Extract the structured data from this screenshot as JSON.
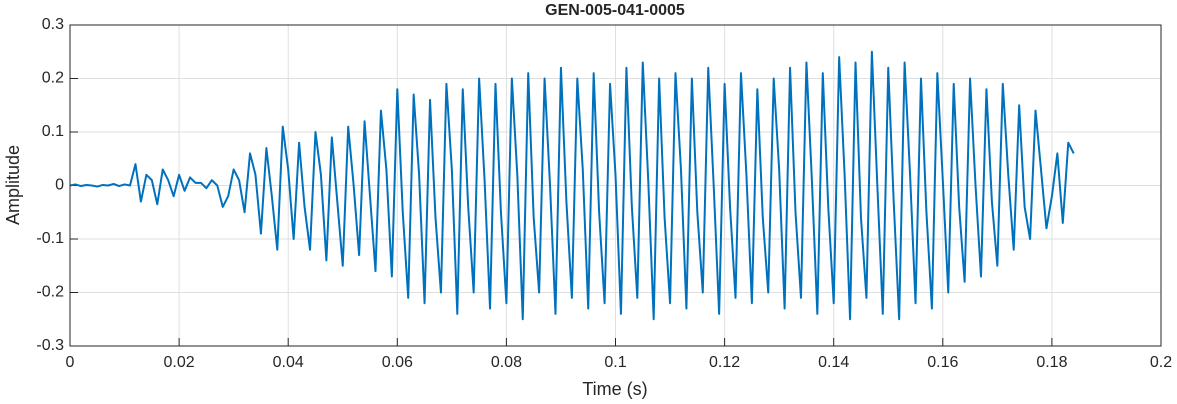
{
  "chart_data": {
    "type": "line",
    "title": "GEN-005-041-0005",
    "xlabel": "Time (s)",
    "ylabel": "Amplitude",
    "xlim": [
      0,
      0.2
    ],
    "ylim": [
      -0.3,
      0.3
    ],
    "xticks": [
      0,
      0.02,
      0.04,
      0.06,
      0.08,
      0.1,
      0.12,
      0.14,
      0.16,
      0.18,
      0.2
    ],
    "yticks": [
      -0.3,
      -0.2,
      -0.1,
      0,
      0.1,
      0.2,
      0.3
    ],
    "grid": true,
    "x": [
      0,
      0.001,
      0.002,
      0.003,
      0.004,
      0.005,
      0.006,
      0.007,
      0.008,
      0.009,
      0.01,
      0.011,
      0.012,
      0.013,
      0.014,
      0.015,
      0.016,
      0.017,
      0.018,
      0.019,
      0.02,
      0.021,
      0.022,
      0.023,
      0.024,
      0.025,
      0.026,
      0.027,
      0.028,
      0.029,
      0.03,
      0.031,
      0.032,
      0.033,
      0.034,
      0.035,
      0.036,
      0.037,
      0.038,
      0.039,
      0.04,
      0.041,
      0.042,
      0.043,
      0.044,
      0.045,
      0.046,
      0.047,
      0.048,
      0.049,
      0.05,
      0.051,
      0.052,
      0.053,
      0.054,
      0.055,
      0.056,
      0.057,
      0.058,
      0.059,
      0.06,
      0.061,
      0.062,
      0.063,
      0.064,
      0.065,
      0.066,
      0.067,
      0.068,
      0.069,
      0.07,
      0.071,
      0.072,
      0.073,
      0.074,
      0.075,
      0.076,
      0.077,
      0.078,
      0.079,
      0.08,
      0.081,
      0.082,
      0.083,
      0.084,
      0.085,
      0.086,
      0.087,
      0.088,
      0.089,
      0.09,
      0.091,
      0.092,
      0.093,
      0.094,
      0.095,
      0.096,
      0.097,
      0.098,
      0.099,
      0.1,
      0.101,
      0.102,
      0.103,
      0.104,
      0.105,
      0.106,
      0.107,
      0.108,
      0.109,
      0.11,
      0.111,
      0.112,
      0.113,
      0.114,
      0.115,
      0.116,
      0.117,
      0.118,
      0.119,
      0.12,
      0.121,
      0.122,
      0.123,
      0.124,
      0.125,
      0.126,
      0.127,
      0.128,
      0.129,
      0.13,
      0.131,
      0.132,
      0.133,
      0.134,
      0.135,
      0.136,
      0.137,
      0.138,
      0.139,
      0.14,
      0.141,
      0.142,
      0.143,
      0.144,
      0.145,
      0.146,
      0.147,
      0.148,
      0.149,
      0.15,
      0.151,
      0.152,
      0.153,
      0.154,
      0.155,
      0.156,
      0.157,
      0.158,
      0.159,
      0.16,
      0.161,
      0.162,
      0.163,
      0.164,
      0.165,
      0.166,
      0.167,
      0.168,
      0.169,
      0.17,
      0.171,
      0.172,
      0.173,
      0.174,
      0.175,
      0.176,
      0.177,
      0.178,
      0.179,
      0.18,
      0.181,
      0.182,
      0.183,
      0.184
    ],
    "series": [
      {
        "color": "#0072bd",
        "values": [
          0,
          0.002,
          -0.001,
          0.001,
          0,
          -0.002,
          0.001,
          0,
          0.003,
          -0.001,
          0.002,
          0,
          0.04,
          -0.03,
          0.02,
          0.01,
          -0.035,
          0.03,
          0.01,
          -0.02,
          0.02,
          -0.01,
          0.015,
          0.005,
          0.005,
          -0.005,
          0.01,
          0,
          -0.04,
          -0.02,
          0.03,
          0.01,
          -0.05,
          0.06,
          0.02,
          -0.09,
          0.07,
          -0.02,
          -0.12,
          0.11,
          0.03,
          -0.1,
          0.08,
          -0.04,
          -0.12,
          0.1,
          0.02,
          -0.14,
          0.09,
          -0.03,
          -0.15,
          0.11,
          0.0,
          -0.13,
          0.12,
          -0.02,
          -0.16,
          0.14,
          0.03,
          -0.17,
          0.18,
          -0.05,
          -0.21,
          0.17,
          0.02,
          -0.22,
          0.16,
          -0.06,
          -0.2,
          0.19,
          0.03,
          -0.24,
          0.18,
          -0.04,
          -0.2,
          0.2,
          0.01,
          -0.23,
          0.19,
          -0.05,
          -0.22,
          0.2,
          0.02,
          -0.25,
          0.21,
          -0.06,
          -0.2,
          0.2,
          0.0,
          -0.24,
          0.22,
          -0.03,
          -0.21,
          0.2,
          0.03,
          -0.23,
          0.21,
          -0.05,
          -0.22,
          0.19,
          0.02,
          -0.24,
          0.22,
          -0.04,
          -0.21,
          0.23,
          0.01,
          -0.25,
          0.2,
          -0.06,
          -0.22,
          0.21,
          0.03,
          -0.23,
          0.2,
          -0.05,
          -0.2,
          0.22,
          0.0,
          -0.24,
          0.19,
          -0.04,
          -0.21,
          0.21,
          0.02,
          -0.22,
          0.18,
          -0.06,
          -0.2,
          0.2,
          0.03,
          -0.23,
          0.22,
          -0.05,
          -0.21,
          0.23,
          0.01,
          -0.24,
          0.21,
          -0.04,
          -0.22,
          0.24,
          0.02,
          -0.25,
          0.23,
          -0.06,
          -0.21,
          0.25,
          0.0,
          -0.24,
          0.22,
          -0.03,
          -0.25,
          0.23,
          0.02,
          -0.22,
          0.2,
          -0.05,
          -0.23,
          0.21,
          0.01,
          -0.2,
          0.19,
          -0.04,
          -0.18,
          0.2,
          0.0,
          -0.17,
          0.18,
          -0.03,
          -0.15,
          0.19,
          0.02,
          -0.12,
          0.15,
          -0.04,
          -0.1,
          0.14,
          0.03,
          -0.08,
          -0.02,
          0.06,
          -0.07,
          0.08,
          0.06
        ]
      }
    ]
  }
}
